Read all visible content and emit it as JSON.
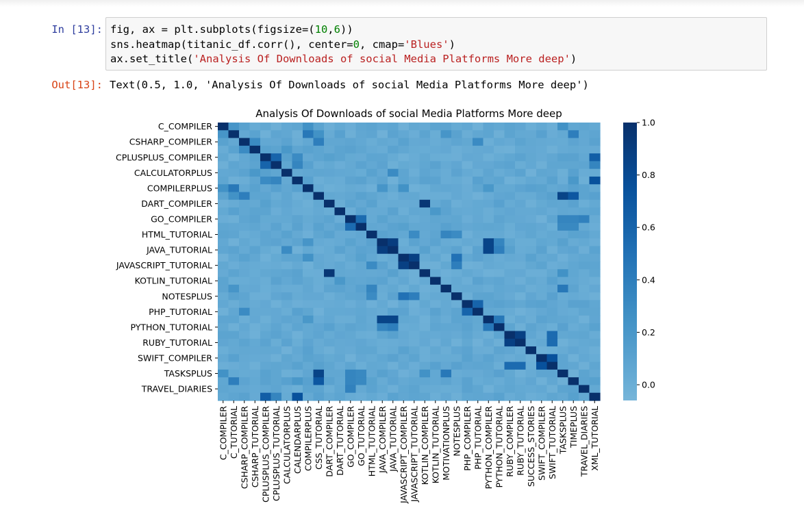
{
  "cell": {
    "input_prompt": "In [13]:",
    "output_prompt": "Out[13]:",
    "code_lines": [
      [
        {
          "t": "fig, ax = plt.subplots(figsize=(",
          "c": ""
        },
        {
          "t": "10",
          "c": "n"
        },
        {
          "t": ",",
          "c": ""
        },
        {
          "t": "6",
          "c": "n"
        },
        {
          "t": "))",
          "c": ""
        }
      ],
      [
        {
          "t": "sns.heatmap(titanic_df.corr(), center=",
          "c": ""
        },
        {
          "t": "0",
          "c": "n"
        },
        {
          "t": ", cmap=",
          "c": ""
        },
        {
          "t": "'Blues'",
          "c": "s"
        },
        {
          "t": ")",
          "c": ""
        }
      ],
      [
        {
          "t": "ax.set_title(",
          "c": ""
        },
        {
          "t": "'Analysis Of Downloads of social Media Platforms More deep'",
          "c": "s"
        },
        {
          "t": ")",
          "c": ""
        }
      ]
    ],
    "output_text": "Text(0.5, 1.0, 'Analysis Of Downloads of social Media Platforms More deep')"
  },
  "chart_data": {
    "type": "heatmap",
    "title": "Analysis Of Downloads of social Media Platforms More deep",
    "colormap": "Blues",
    "labels": [
      "C_COMPILER",
      "C_TUTORIAL",
      "CSHARP_COMPILER",
      "CSHARP_TUTORIAL",
      "CPLUSPLUS_COMPILER",
      "CPLUSPLUS_TUTORIAL",
      "CALCULATORPLUS",
      "CALENDARPLUS",
      "COMPILERPLUS",
      "CSS_TUTORIAL",
      "DART_COMPILER",
      "DART_TUTORIAL",
      "GO_COMPILER",
      "GO_TUTORIAL",
      "HTML_TUTORIAL",
      "JAVA_COMPILER",
      "JAVA_TUTORIAL",
      "JAVASCRIPT_COMPILER",
      "JAVASCRIPT_TUTORIAL",
      "KOTLIN_COMPILER",
      "KOTLIN_TUTORIAL",
      "MOTIVATIONPLUS",
      "NOTESPLUS",
      "PHP_COMPILER",
      "PHP_TUTORIAL",
      "PYTHON_COMPILER",
      "PYTHON_TUTORIAL",
      "RUBY_COMPILER",
      "RUBY_TUTORIAL",
      "SUCCESS_STORIES",
      "SWIFT_COMPILER",
      "SWIFT_TUTORIAL",
      "TASKSPLUS",
      "TIMEPLUS",
      "TRAVEL_DIARIES",
      "XML_TUTORIAL"
    ],
    "y_tick_labels": [
      "C_COMPILER",
      "CSHARP_COMPILER",
      "CPLUSPLUS_COMPILER",
      "CALCULATORPLUS",
      "COMPILERPLUS",
      "DART_COMPILER",
      "GO_COMPILER",
      "HTML_TUTORIAL",
      "JAVA_TUTORIAL",
      "JAVASCRIPT_TUTORIAL",
      "KOTLIN_TUTORIAL",
      "NOTESPLUS",
      "PHP_TUTORIAL",
      "PYTHON_TUTORIAL",
      "RUBY_TUTORIAL",
      "SWIFT_COMPILER",
      "TASKSPLUS",
      "TRAVEL_DIARIES"
    ],
    "y_tick_rows": [
      0,
      2,
      4,
      6,
      8,
      10,
      12,
      14,
      16,
      18,
      20,
      22,
      24,
      26,
      28,
      30,
      32,
      34
    ],
    "x_tick_labels": [
      "C_COMPILER",
      "C_TUTORIAL",
      "CSHARP_COMPILER",
      "CSHARP_TUTORIAL",
      "CPLUSPLUS_COMPILER",
      "CPLUSPLUS_TUTORIAL",
      "CALCULATORPLUS",
      "CALENDARPLUS",
      "COMPILERPLUS",
      "CSS_TUTORIAL",
      "DART_COMPILER",
      "DART_TUTORIAL",
      "GO_COMPILER",
      "GO_TUTORIAL",
      "HTML_TUTORIAL",
      "JAVA_COMPILER",
      "JAVA_TUTORIAL",
      "JAVASCRIPT_COMPILER",
      "JAVASCRIPT_TUTORIAL",
      "KOTLIN_COMPILER",
      "KOTLIN_TUTORIAL",
      "MOTIVATIONPLUS",
      "NOTESPLUS",
      "PHP_COMPILER",
      "PHP_TUTORIAL",
      "PYTHON_COMPILER",
      "PYTHON_TUTORIAL",
      "RUBY_COMPILER",
      "RUBY_TUTORIAL",
      "SUCCESS_STORIES",
      "SWIFT_COMPILER",
      "SWIFT_TUTORIAL",
      "TASKSPLUS",
      "TIMEPLUS",
      "TRAVEL_DIARIES",
      "XML_TUTORIAL"
    ],
    "colorbar": {
      "range": [
        -0.06,
        1.0
      ],
      "ticks": [
        0.0,
        0.2,
        0.4,
        0.6,
        0.8,
        1.0
      ],
      "tick_labels": [
        "0.0",
        "0.2",
        "0.4",
        "0.6",
        "0.8",
        "1.0"
      ]
    },
    "base_value": 0.05,
    "diagonal_value": 1.0,
    "notable_cells": [
      [
        0,
        1,
        0.22
      ],
      [
        0,
        8,
        0.25
      ],
      [
        0,
        32,
        0.25
      ],
      [
        1,
        8,
        0.45
      ],
      [
        1,
        9,
        0.25
      ],
      [
        1,
        21,
        0.22
      ],
      [
        1,
        33,
        0.4
      ],
      [
        2,
        3,
        0.3
      ],
      [
        2,
        9,
        0.4
      ],
      [
        2,
        24,
        0.3
      ],
      [
        4,
        5,
        0.6
      ],
      [
        4,
        7,
        0.3
      ],
      [
        4,
        35,
        0.65
      ],
      [
        5,
        7,
        0.35
      ],
      [
        5,
        35,
        0.35
      ],
      [
        6,
        16,
        0.3
      ],
      [
        7,
        33,
        0.2
      ],
      [
        7,
        35,
        0.75
      ],
      [
        8,
        15,
        0.22
      ],
      [
        8,
        17,
        0.25
      ],
      [
        8,
        25,
        0.2
      ],
      [
        9,
        33,
        0.7
      ],
      [
        10,
        19,
        0.95
      ],
      [
        12,
        13,
        0.55
      ],
      [
        12,
        32,
        0.35
      ],
      [
        12,
        33,
        0.35
      ],
      [
        12,
        34,
        0.38
      ],
      [
        13,
        32,
        0.32
      ],
      [
        13,
        33,
        0.32
      ],
      [
        14,
        18,
        0.3
      ],
      [
        14,
        21,
        0.35
      ],
      [
        14,
        22,
        0.3
      ],
      [
        15,
        16,
        0.9
      ],
      [
        15,
        25,
        0.85
      ],
      [
        15,
        26,
        0.35
      ],
      [
        16,
        25,
        0.85
      ],
      [
        16,
        26,
        0.4
      ],
      [
        17,
        18,
        0.88
      ],
      [
        17,
        22,
        0.5
      ],
      [
        18,
        22,
        0.4
      ],
      [
        19,
        32,
        0.25
      ],
      [
        21,
        32,
        0.45
      ],
      [
        23,
        24,
        0.6
      ],
      [
        25,
        26,
        0.45
      ],
      [
        27,
        28,
        0.88
      ],
      [
        27,
        31,
        0.55
      ],
      [
        28,
        31,
        0.55
      ],
      [
        30,
        31,
        0.75
      ],
      [
        9,
        32,
        0.85
      ],
      [
        3,
        6,
        0.2
      ],
      [
        11,
        20,
        0.2
      ]
    ]
  }
}
